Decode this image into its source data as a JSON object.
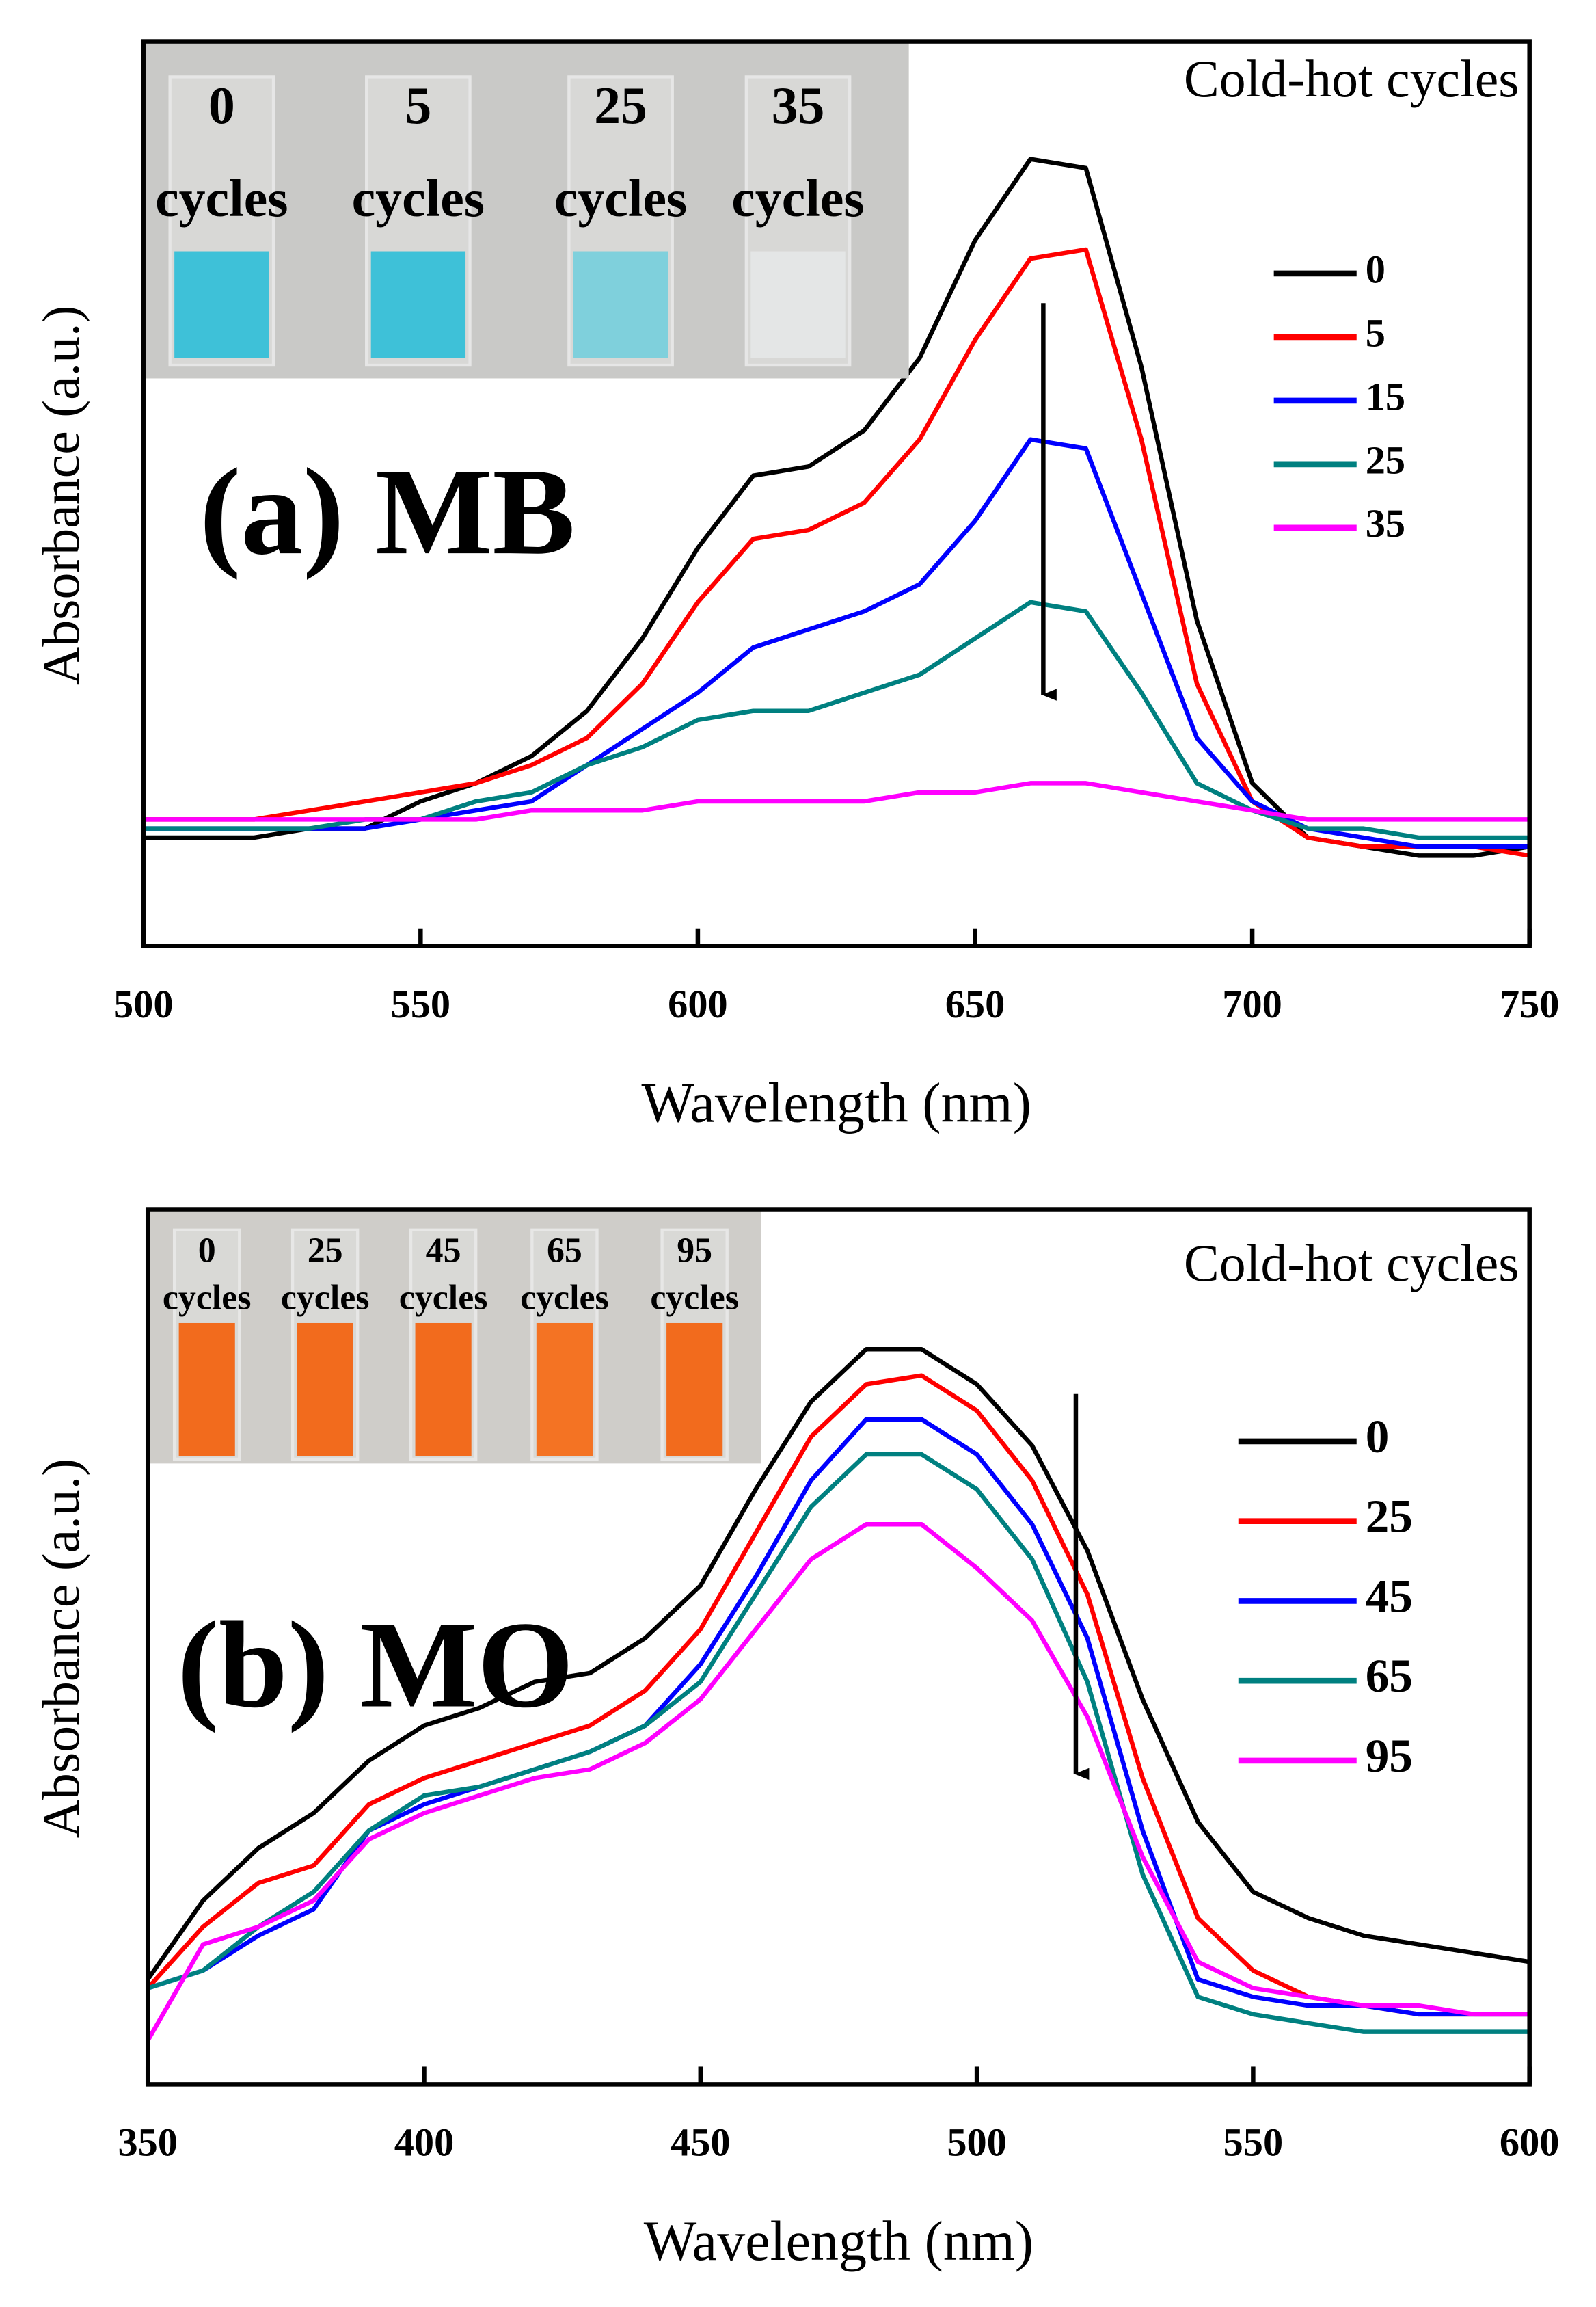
{
  "chart_data": [
    {
      "type": "line",
      "title": "(a) MB",
      "legend_title": "Cold-hot cycles",
      "x_label": "Wavelength (nm)",
      "y_label": "Absorbance (a.u.)",
      "inset_labels": [
        {
          "number": "0",
          "unit": "cycles"
        },
        {
          "number": "5",
          "unit": "cycles"
        },
        {
          "number": "25",
          "unit": "cycles"
        },
        {
          "number": "35",
          "unit": "cycles"
        }
      ],
      "x": [
        500,
        510,
        520,
        530,
        540,
        550,
        560,
        570,
        580,
        590,
        600,
        610,
        620,
        630,
        640,
        650,
        660,
        670,
        680,
        690,
        700,
        710,
        720,
        730,
        740,
        750
      ],
      "xlim": [
        500,
        750
      ],
      "ylim": [
        0,
        1
      ],
      "xticks": [
        500,
        550,
        600,
        650,
        700,
        750
      ],
      "series": [
        {
          "name": "0",
          "color": "#000000",
          "values": [
            0.12,
            0.12,
            0.12,
            0.13,
            0.13,
            0.16,
            0.18,
            0.21,
            0.26,
            0.34,
            0.44,
            0.52,
            0.53,
            0.57,
            0.65,
            0.78,
            0.87,
            0.86,
            0.64,
            0.36,
            0.18,
            0.12,
            0.11,
            0.1,
            0.1,
            0.11
          ]
        },
        {
          "name": "5",
          "color": "#ff0000",
          "values": [
            0.14,
            0.14,
            0.14,
            0.15,
            0.16,
            0.17,
            0.18,
            0.2,
            0.23,
            0.29,
            0.38,
            0.45,
            0.46,
            0.49,
            0.56,
            0.67,
            0.76,
            0.77,
            0.56,
            0.29,
            0.16,
            0.12,
            0.11,
            0.11,
            0.11,
            0.1
          ]
        },
        {
          "name": "15",
          "color": "#0000ff",
          "values": [
            0.13,
            0.13,
            0.13,
            0.13,
            0.13,
            0.14,
            0.15,
            0.16,
            0.2,
            0.24,
            0.28,
            0.33,
            0.35,
            0.37,
            0.4,
            0.47,
            0.56,
            0.55,
            0.39,
            0.23,
            0.16,
            0.13,
            0.12,
            0.11,
            0.11,
            0.11
          ]
        },
        {
          "name": "25",
          "color": "#008080",
          "values": [
            0.13,
            0.13,
            0.13,
            0.13,
            0.14,
            0.14,
            0.16,
            0.17,
            0.2,
            0.22,
            0.25,
            0.26,
            0.26,
            0.28,
            0.3,
            0.34,
            0.38,
            0.37,
            0.28,
            0.18,
            0.15,
            0.13,
            0.13,
            0.12,
            0.12,
            0.12
          ]
        },
        {
          "name": "35",
          "color": "#ff00ff",
          "values": [
            0.14,
            0.14,
            0.14,
            0.14,
            0.14,
            0.14,
            0.14,
            0.15,
            0.15,
            0.15,
            0.16,
            0.16,
            0.16,
            0.16,
            0.17,
            0.17,
            0.18,
            0.18,
            0.17,
            0.16,
            0.15,
            0.14,
            0.14,
            0.14,
            0.14,
            0.14
          ]
        }
      ]
    },
    {
      "type": "line",
      "title": "(b) MO",
      "legend_title": "Cold-hot cycles",
      "x_label": "Wavelength (nm)",
      "y_label": "Absorbance (a.u.)",
      "inset_labels": [
        {
          "number": "0",
          "unit": "cycles"
        },
        {
          "number": "25",
          "unit": "cycles"
        },
        {
          "number": "45",
          "unit": "cycles"
        },
        {
          "number": "65",
          "unit": "cycles"
        },
        {
          "number": "95",
          "unit": "cycles"
        }
      ],
      "x": [
        350,
        360,
        370,
        380,
        390,
        400,
        410,
        420,
        430,
        440,
        450,
        460,
        470,
        480,
        490,
        500,
        510,
        520,
        530,
        540,
        550,
        560,
        570,
        580,
        590,
        600
      ],
      "xlim": [
        350,
        600
      ],
      "ylim": [
        0,
        1
      ],
      "xticks": [
        350,
        400,
        450,
        500,
        550,
        600
      ],
      "series": [
        {
          "name": "0",
          "color": "#000000",
          "values": [
            0.12,
            0.21,
            0.27,
            0.31,
            0.37,
            0.41,
            0.43,
            0.46,
            0.47,
            0.51,
            0.57,
            0.68,
            0.78,
            0.84,
            0.84,
            0.8,
            0.73,
            0.61,
            0.44,
            0.3,
            0.22,
            0.19,
            0.17,
            0.16,
            0.15,
            0.14
          ]
        },
        {
          "name": "25",
          "color": "#ff0000",
          "values": [
            0.11,
            0.18,
            0.23,
            0.25,
            0.32,
            0.35,
            0.37,
            0.39,
            0.41,
            0.45,
            0.52,
            0.63,
            0.74,
            0.8,
            0.81,
            0.77,
            0.69,
            0.56,
            0.35,
            0.19,
            0.13,
            0.1,
            0.09,
            0.08,
            0.08,
            0.08
          ]
        },
        {
          "name": "45",
          "color": "#0000ff",
          "values": [
            0.11,
            0.13,
            0.17,
            0.2,
            0.29,
            0.32,
            0.34,
            0.36,
            0.38,
            0.41,
            0.48,
            0.58,
            0.69,
            0.76,
            0.76,
            0.72,
            0.64,
            0.51,
            0.29,
            0.12,
            0.1,
            0.09,
            0.09,
            0.08,
            0.08,
            0.08
          ]
        },
        {
          "name": "65",
          "color": "#008080",
          "values": [
            0.11,
            0.13,
            0.18,
            0.22,
            0.29,
            0.33,
            0.34,
            0.36,
            0.38,
            0.41,
            0.46,
            0.56,
            0.66,
            0.72,
            0.72,
            0.68,
            0.6,
            0.46,
            0.24,
            0.1,
            0.08,
            0.07,
            0.06,
            0.06,
            0.06,
            0.06
          ]
        },
        {
          "name": "95",
          "color": "#ff00ff",
          "values": [
            0.05,
            0.16,
            0.18,
            0.21,
            0.28,
            0.31,
            0.33,
            0.35,
            0.36,
            0.39,
            0.44,
            0.52,
            0.6,
            0.64,
            0.64,
            0.59,
            0.53,
            0.42,
            0.26,
            0.14,
            0.11,
            0.1,
            0.09,
            0.09,
            0.08,
            0.08
          ]
        }
      ]
    }
  ]
}
